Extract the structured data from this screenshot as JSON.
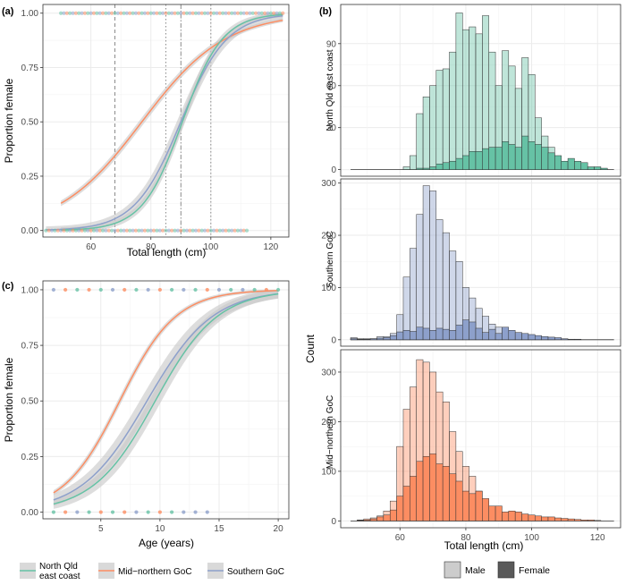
{
  "colors": {
    "north_qld": "#66c2a5",
    "mid_northern": "#fc8d62",
    "southern": "#8da0cb",
    "ribbon": "#c8c8c8",
    "male_alpha": 0.42,
    "grid": "#ebebeb",
    "axis_text": "#4d4d4d",
    "bar_stroke": "#333333"
  },
  "legend_left": {
    "items": [
      {
        "key": "north_qld",
        "line1": "North Qld",
        "line2": "east coast"
      },
      {
        "key": "mid_northern",
        "line1": "Mid−northern GoC",
        "line2": ""
      },
      {
        "key": "southern",
        "line1": "Southern GoC",
        "line2": ""
      }
    ]
  },
  "legend_right": {
    "items": [
      {
        "key": "male",
        "label": "Male"
      },
      {
        "key": "female",
        "label": "Female"
      }
    ]
  },
  "chart_data": [
    {
      "panel": "a",
      "panel_label": "(a)",
      "type": "line",
      "xlabel": "Total length (cm)",
      "ylabel": "Proportion female",
      "xlim": [
        44,
        126
      ],
      "ylim": [
        -0.03,
        1.04
      ],
      "xticks": [
        60,
        80,
        100,
        120
      ],
      "xtick_labels": [
        "60",
        "80",
        "100",
        "120"
      ],
      "yticks": [
        0,
        0.25,
        0.5,
        0.75,
        1
      ],
      "ytick_labels": [
        "0.00",
        "0.25",
        "0.50",
        "0.75",
        "1.00"
      ],
      "vlines": [
        {
          "x": 68,
          "dash": "4,3"
        },
        {
          "x": 85,
          "dash": "1.5,2.5"
        },
        {
          "x": 90,
          "dash": "5,2,1.5,2"
        },
        {
          "x": 100,
          "dash": "1.5,2.5"
        }
      ],
      "series": [
        {
          "name": "Mid−northern GoC",
          "key": "mid_northern",
          "x_range": [
            50,
            124
          ],
          "midpoint": 77,
          "slope": 0.072,
          "ribbon_halfwidth": 0.02
        },
        {
          "name": "Southern GoC",
          "key": "southern",
          "x_range": [
            45,
            124
          ],
          "midpoint": 90,
          "slope": 0.13,
          "ribbon_halfwidth": 0.045
        },
        {
          "name": "North Qld east coast",
          "key": "north_qld",
          "x_range": [
            50,
            124
          ],
          "midpoint": 90.5,
          "slope": 0.15,
          "ribbon_halfwidth": 0.035
        }
      ],
      "rug": {
        "x_range": [
          45,
          124
        ],
        "y": [
          0,
          1
        ]
      }
    },
    {
      "panel": "c",
      "panel_label": "(c)",
      "type": "line",
      "xlabel": "Age (years)",
      "ylabel": "Proportion female",
      "xlim": [
        0.1,
        20.9
      ],
      "ylim": [
        -0.03,
        1.04
      ],
      "xticks": [
        5,
        10,
        15,
        20
      ],
      "xtick_labels": [
        "5",
        "10",
        "15",
        "20"
      ],
      "yticks": [
        0,
        0.25,
        0.5,
        0.75,
        1
      ],
      "ytick_labels": [
        "0.00",
        "0.25",
        "0.50",
        "0.75",
        "1.00"
      ],
      "series": [
        {
          "name": "Mid−northern GoC",
          "key": "mid_northern",
          "x_range": [
            1,
            20
          ],
          "midpoint": 6.6,
          "slope": 0.42,
          "ribbon_halfwidth": 0.02
        },
        {
          "name": "Southern GoC",
          "key": "southern",
          "x_range": [
            1,
            20
          ],
          "midpoint": 8.9,
          "slope": 0.36,
          "ribbon_halfwidth": 0.055
        },
        {
          "name": "North Qld east coast",
          "key": "north_qld",
          "x_range": [
            1,
            20
          ],
          "midpoint": 9.6,
          "slope": 0.38,
          "ribbon_halfwidth": 0.05
        }
      ],
      "rug_points": [
        {
          "x": 1,
          "y": 1,
          "key": "southern"
        },
        {
          "x": 2,
          "y": 1,
          "key": "mid_northern"
        },
        {
          "x": 3,
          "y": 1,
          "key": "north_qld"
        },
        {
          "x": 4,
          "y": 1,
          "key": "mid_northern"
        },
        {
          "x": 5,
          "y": 1,
          "key": "north_qld"
        },
        {
          "x": 6,
          "y": 1,
          "key": "southern"
        },
        {
          "x": 7,
          "y": 1,
          "key": "mid_northern"
        },
        {
          "x": 8,
          "y": 1,
          "key": "north_qld"
        },
        {
          "x": 9,
          "y": 1,
          "key": "southern"
        },
        {
          "x": 10,
          "y": 1,
          "key": "mid_northern"
        },
        {
          "x": 11,
          "y": 1,
          "key": "north_qld"
        },
        {
          "x": 12,
          "y": 1,
          "key": "southern"
        },
        {
          "x": 13,
          "y": 1,
          "key": "north_qld"
        },
        {
          "x": 14,
          "y": 1,
          "key": "mid_northern"
        },
        {
          "x": 15,
          "y": 1,
          "key": "southern"
        },
        {
          "x": 16,
          "y": 1,
          "key": "north_qld"
        },
        {
          "x": 17,
          "y": 1,
          "key": "southern"
        },
        {
          "x": 18,
          "y": 1,
          "key": "north_qld"
        },
        {
          "x": 19,
          "y": 1,
          "key": "mid_northern"
        },
        {
          "x": 20,
          "y": 1,
          "key": "north_qld"
        },
        {
          "x": 1,
          "y": 0,
          "key": "north_qld"
        },
        {
          "x": 2,
          "y": 0,
          "key": "mid_northern"
        },
        {
          "x": 3,
          "y": 0,
          "key": "southern"
        },
        {
          "x": 4,
          "y": 0,
          "key": "north_qld"
        },
        {
          "x": 5,
          "y": 0,
          "key": "mid_northern"
        },
        {
          "x": 6,
          "y": 0,
          "key": "north_qld"
        },
        {
          "x": 7,
          "y": 0,
          "key": "mid_northern"
        },
        {
          "x": 8,
          "y": 0,
          "key": "southern"
        },
        {
          "x": 9,
          "y": 0,
          "key": "north_qld"
        },
        {
          "x": 10,
          "y": 0,
          "key": "mid_northern"
        },
        {
          "x": 11,
          "y": 0,
          "key": "north_qld"
        },
        {
          "x": 12,
          "y": 0,
          "key": "southern"
        },
        {
          "x": 13,
          "y": 0,
          "key": "southern"
        },
        {
          "x": 14,
          "y": 0,
          "key": "southern"
        }
      ]
    },
    {
      "panel": "b",
      "panel_label": "(b)",
      "type": "bar",
      "xlabel": "Total length (cm)",
      "ylabel": "Count",
      "xlim": [
        42,
        127
      ],
      "xticks": [
        60,
        80,
        100,
        120
      ],
      "xtick_labels": [
        "60",
        "80",
        "100",
        "120"
      ],
      "bin_start": 45,
      "bin_width": 2,
      "facets": [
        {
          "name": "North Qld east coast",
          "key": "north_qld",
          "ylim": [
            0,
            118
          ],
          "yticks": [
            0,
            30,
            60,
            90
          ],
          "ytick_labels": [
            "0",
            "30",
            "60",
            "90"
          ],
          "male": [
            0,
            0,
            0,
            0,
            0,
            0,
            0,
            0,
            2,
            10,
            40,
            52,
            60,
            71,
            72,
            84,
            112,
            100,
            102,
            97,
            110,
            84,
            60,
            85,
            74,
            58,
            80,
            68,
            37,
            24,
            16,
            6,
            4,
            3,
            2,
            1,
            0,
            0,
            0,
            0
          ],
          "female": [
            0,
            0,
            0,
            0,
            0,
            0,
            0,
            0,
            0,
            0,
            1,
            1,
            2,
            4,
            5,
            6,
            8,
            10,
            13,
            13,
            15,
            16,
            16,
            20,
            18,
            16,
            24,
            20,
            18,
            16,
            12,
            10,
            6,
            8,
            6,
            5,
            2,
            2,
            1,
            0
          ]
        },
        {
          "name": "Southern GoC",
          "key": "southern",
          "ylim": [
            0,
            308
          ],
          "yticks": [
            0,
            100,
            200,
            300
          ],
          "ytick_labels": [
            "0",
            "100",
            "200",
            "300"
          ],
          "male": [
            4,
            2,
            2,
            2,
            6,
            6,
            12,
            48,
            120,
            175,
            240,
            295,
            285,
            230,
            205,
            170,
            150,
            100,
            80,
            60,
            45,
            30,
            24,
            15,
            10,
            8,
            6,
            4,
            3,
            2,
            1,
            0,
            0,
            0,
            0,
            0,
            0,
            0,
            0,
            0
          ],
          "female": [
            2,
            1,
            1,
            2,
            3,
            4,
            8,
            15,
            18,
            16,
            24,
            22,
            18,
            22,
            20,
            18,
            28,
            38,
            34,
            22,
            14,
            20,
            12,
            24,
            18,
            14,
            12,
            10,
            8,
            6,
            5,
            4,
            2,
            1,
            1,
            0,
            0,
            0,
            0,
            0
          ]
        },
        {
          "name": "Mid−northern GoC",
          "key": "mid_northern",
          "ylim": [
            0,
            345
          ],
          "yticks": [
            0,
            100,
            200,
            300
          ],
          "ytick_labels": [
            "0",
            "100",
            "200",
            "300"
          ],
          "male": [
            0,
            2,
            4,
            6,
            10,
            20,
            40,
            150,
            225,
            270,
            325,
            320,
            300,
            260,
            240,
            180,
            140,
            110,
            90,
            60,
            40,
            25,
            15,
            10,
            6,
            4,
            3,
            2,
            1,
            1,
            0,
            0,
            0,
            0,
            0,
            0,
            0,
            0,
            0,
            0
          ],
          "female": [
            0,
            1,
            2,
            4,
            8,
            12,
            22,
            50,
            70,
            90,
            120,
            130,
            135,
            115,
            110,
            95,
            80,
            60,
            55,
            60,
            45,
            30,
            30,
            18,
            20,
            18,
            14,
            12,
            10,
            8,
            8,
            6,
            5,
            4,
            3,
            2,
            2,
            1,
            0,
            0
          ]
        }
      ]
    }
  ]
}
